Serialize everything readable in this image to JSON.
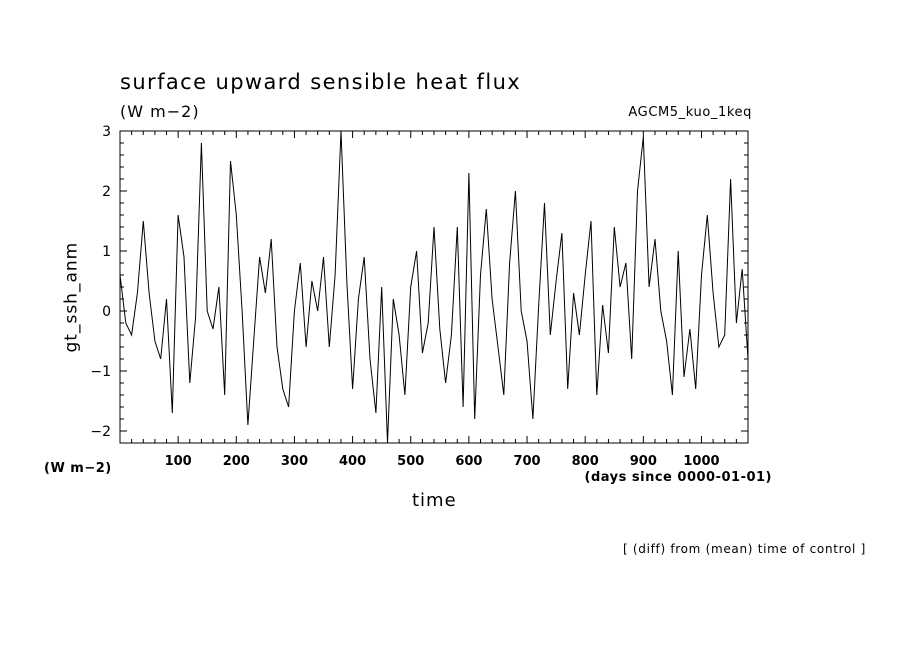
{
  "chart_data": {
    "type": "line",
    "title": "surface upward sensible heat flux",
    "units": "(W m−2)",
    "experiment": "AGCM5_kuo_1keq",
    "ylabel": "gt_ssh_anm",
    "y_units": "(W m−2)",
    "xlabel": "time",
    "x_units": "(days since 0000-01-01)",
    "note": "[ (diff) from (mean) time of control ]",
    "xlim": [
      0,
      1080
    ],
    "ylim": [
      -2.2,
      3.0
    ],
    "xticks": [
      100,
      200,
      300,
      400,
      500,
      600,
      700,
      800,
      900,
      1000
    ],
    "xtick_labels": [
      "100",
      "200",
      "300",
      "400",
      "500",
      "600",
      "700",
      "800",
      "900",
      "1000"
    ],
    "yticks": [
      -2,
      -1,
      0,
      1,
      2,
      3
    ],
    "ytick_labels": [
      "−2",
      "−1",
      "0",
      "1",
      "2",
      "3"
    ],
    "grid": false,
    "series": [
      {
        "color": "#000000",
        "x": [
          0,
          10,
          20,
          30,
          40,
          50,
          60,
          70,
          80,
          90,
          100,
          110,
          120,
          130,
          140,
          150,
          160,
          170,
          180,
          190,
          200,
          210,
          220,
          230,
          240,
          250,
          260,
          270,
          280,
          290,
          300,
          310,
          320,
          330,
          340,
          350,
          360,
          370,
          380,
          390,
          400,
          410,
          420,
          430,
          440,
          450,
          460,
          470,
          480,
          490,
          500,
          510,
          520,
          530,
          540,
          550,
          560,
          570,
          580,
          590,
          600,
          610,
          620,
          630,
          640,
          650,
          660,
          670,
          680,
          690,
          700,
          710,
          720,
          730,
          740,
          750,
          760,
          770,
          780,
          790,
          800,
          810,
          820,
          830,
          840,
          850,
          860,
          870,
          880,
          890,
          900,
          910,
          920,
          930,
          940,
          950,
          960,
          970,
          980,
          990,
          1000,
          1010,
          1020,
          1030,
          1040,
          1050,
          1060,
          1070,
          1080
        ],
        "y": [
          0.6,
          -0.2,
          -0.4,
          0.3,
          1.5,
          0.3,
          -0.5,
          -0.8,
          0.2,
          -1.7,
          1.6,
          0.9,
          -1.2,
          -0.1,
          2.8,
          0.0,
          -0.3,
          0.4,
          -1.4,
          2.5,
          1.6,
          0.0,
          -1.9,
          -0.5,
          0.9,
          0.3,
          1.2,
          -0.6,
          -1.3,
          -1.6,
          0.0,
          0.8,
          -0.6,
          0.5,
          0.0,
          0.9,
          -0.6,
          0.6,
          3.0,
          0.5,
          -1.3,
          0.2,
          0.9,
          -0.8,
          -1.7,
          0.4,
          -2.2,
          0.2,
          -0.4,
          -1.4,
          0.4,
          1.0,
          -0.7,
          -0.2,
          1.4,
          -0.3,
          -1.2,
          -0.4,
          1.4,
          -1.6,
          2.3,
          -1.8,
          0.6,
          1.7,
          0.2,
          -0.6,
          -1.4,
          0.8,
          2.0,
          0.0,
          -0.5,
          -1.8,
          0.1,
          1.8,
          -0.4,
          0.5,
          1.3,
          -1.3,
          0.3,
          -0.4,
          0.6,
          1.5,
          -1.4,
          0.1,
          -0.7,
          1.4,
          0.4,
          0.8,
          -0.8,
          2.0,
          2.9,
          0.4,
          1.2,
          0.0,
          -0.5,
          -1.4,
          1.0,
          -1.1,
          -0.3,
          -1.3,
          0.6,
          1.6,
          0.3,
          -0.6,
          -0.4,
          2.2,
          -0.2,
          0.7,
          -0.8
        ]
      }
    ]
  }
}
